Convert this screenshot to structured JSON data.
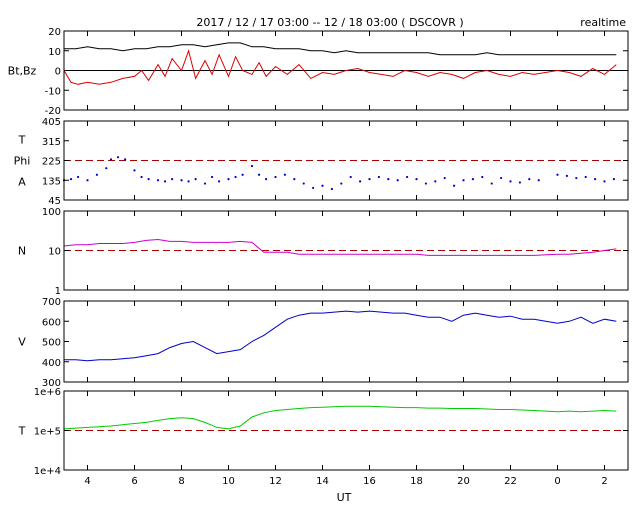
{
  "header": {
    "title": "2017 / 12 / 17   03:00 -- 12 / 18   03:00 ( DSCOVR )",
    "badge": "realtime"
  },
  "x_axis": {
    "label": "UT",
    "ticks": [
      {
        "h": 4,
        "label": "4"
      },
      {
        "h": 6,
        "label": "6"
      },
      {
        "h": 8,
        "label": "8"
      },
      {
        "h": 10,
        "label": "10"
      },
      {
        "h": 12,
        "label": "12"
      },
      {
        "h": 14,
        "label": "14"
      },
      {
        "h": 16,
        "label": "16"
      },
      {
        "h": 18,
        "label": "18"
      },
      {
        "h": 20,
        "label": "20"
      },
      {
        "h": 22,
        "label": "22"
      },
      {
        "h": 24,
        "label": "0"
      },
      {
        "h": 26,
        "label": "2"
      }
    ]
  },
  "chart_data": [
    {
      "type": "line",
      "id": "bt-bz",
      "ylabel": "Bt,Bz",
      "ylim": [
        -20,
        20
      ],
      "yticks": [
        {
          "v": 20,
          "label": "20"
        },
        {
          "v": 10,
          "label": "10"
        },
        {
          "v": 0,
          "label": "0"
        },
        {
          "v": -10,
          "label": "-10"
        },
        {
          "v": -20,
          "label": "-20"
        }
      ],
      "reference_lines": [
        {
          "value": 0,
          "style": "solid",
          "color": "#000000"
        }
      ],
      "series": [
        {
          "color": "#000000",
          "x": [
            3.0,
            3.5,
            4.0,
            4.5,
            5.0,
            5.5,
            6.0,
            6.5,
            7.0,
            7.5,
            8.0,
            8.5,
            9.0,
            9.5,
            10.0,
            10.5,
            11.0,
            11.5,
            12.0,
            12.5,
            13.0,
            13.5,
            14.0,
            14.5,
            15.0,
            15.5,
            16.0,
            16.5,
            17.0,
            17.5,
            18.0,
            18.5,
            19.0,
            19.5,
            20.0,
            20.5,
            21.0,
            21.5,
            22.0,
            22.5,
            23.0,
            24.0,
            24.5,
            25.0,
            25.5,
            26.0,
            26.5
          ],
          "y": [
            11,
            11,
            12,
            11,
            11,
            10,
            11,
            11,
            12,
            12,
            13,
            13,
            12,
            13,
            14,
            14,
            12,
            12,
            11,
            11,
            11,
            10,
            10,
            9,
            10,
            9,
            9,
            9,
            9,
            9,
            9,
            9,
            8,
            8,
            8,
            8,
            9,
            8,
            8,
            8,
            8,
            8,
            8,
            8,
            8,
            8,
            8
          ]
        },
        {
          "color": "#dd0000",
          "x": [
            3.0,
            3.3,
            3.6,
            4.0,
            4.5,
            5.0,
            5.5,
            6.0,
            6.3,
            6.6,
            7.0,
            7.3,
            7.6,
            8.0,
            8.3,
            8.6,
            9.0,
            9.3,
            9.6,
            10.0,
            10.3,
            10.6,
            11.0,
            11.3,
            11.6,
            12.0,
            12.5,
            13.0,
            13.5,
            14.0,
            14.5,
            15.0,
            15.5,
            16.0,
            16.5,
            17.0,
            17.5,
            18.0,
            18.5,
            19.0,
            19.5,
            20.0,
            20.5,
            21.0,
            21.5,
            22.0,
            22.5,
            23.0,
            24.0,
            24.5,
            25.0,
            25.5,
            26.0,
            26.5
          ],
          "y": [
            0,
            -6,
            -7,
            -6,
            -7,
            -6,
            -4,
            -3,
            0,
            -5,
            3,
            -3,
            6,
            0,
            10,
            -4,
            5,
            -2,
            8,
            -3,
            7,
            0,
            -2,
            4,
            -3,
            2,
            -2,
            3,
            -4,
            -1,
            -2,
            0,
            1,
            -1,
            -2,
            -3,
            0,
            -1,
            -3,
            -1,
            -2,
            -4,
            -1,
            0,
            -2,
            -3,
            -1,
            -2,
            0,
            -1,
            -3,
            1,
            -2,
            3
          ]
        }
      ]
    },
    {
      "type": "scatter",
      "id": "phi",
      "ylabel": [
        "T",
        "Phi",
        "A"
      ],
      "ylim": [
        45,
        405
      ],
      "yticks": [
        {
          "v": 405,
          "label": "405"
        },
        {
          "v": 315,
          "label": "315"
        },
        {
          "v": 225,
          "label": "225"
        },
        {
          "v": 135,
          "label": "135"
        },
        {
          "v": 45,
          "label": "45"
        }
      ],
      "reference_lines": [
        {
          "value": 225,
          "style": "dashed",
          "color": "#aa0000"
        }
      ],
      "series": [
        {
          "color": "#0000cc",
          "x": [
            3.0,
            3.3,
            3.6,
            4.0,
            4.4,
            4.8,
            5.0,
            5.3,
            5.6,
            6.0,
            6.3,
            6.6,
            7.0,
            7.3,
            7.6,
            8.0,
            8.3,
            8.6,
            9.0,
            9.3,
            9.6,
            10.0,
            10.3,
            10.6,
            11.0,
            11.3,
            11.6,
            12.0,
            12.4,
            12.8,
            13.2,
            13.6,
            14.0,
            14.4,
            14.8,
            15.2,
            15.6,
            16.0,
            16.4,
            16.8,
            17.2,
            17.6,
            18.0,
            18.4,
            18.8,
            19.2,
            19.6,
            20.0,
            20.4,
            20.8,
            21.2,
            21.6,
            22.0,
            22.4,
            22.8,
            23.2,
            24.0,
            24.4,
            24.8,
            25.2,
            25.6,
            26.0,
            26.4
          ],
          "y": [
            135,
            140,
            150,
            135,
            160,
            190,
            230,
            240,
            230,
            180,
            150,
            140,
            135,
            130,
            140,
            135,
            130,
            140,
            120,
            150,
            130,
            140,
            150,
            160,
            200,
            160,
            140,
            150,
            160,
            140,
            120,
            100,
            110,
            95,
            120,
            150,
            130,
            140,
            150,
            140,
            135,
            150,
            140,
            120,
            130,
            145,
            110,
            135,
            140,
            150,
            120,
            145,
            130,
            125,
            140,
            135,
            160,
            155,
            145,
            150,
            140,
            130,
            140
          ]
        }
      ]
    },
    {
      "type": "line",
      "id": "density",
      "ylabel": "N",
      "scale": "log",
      "ylim": [
        1,
        100
      ],
      "yticks": [
        {
          "v": 100,
          "label": "100"
        },
        {
          "v": 10,
          "label": "10"
        },
        {
          "v": 1,
          "label": "1"
        }
      ],
      "reference_lines": [
        {
          "value": 10,
          "style": "dashed",
          "color": "#aa0000"
        }
      ],
      "series": [
        {
          "color": "#cc00cc",
          "x": [
            3.0,
            3.5,
            4.0,
            4.5,
            5.0,
            5.5,
            6.0,
            6.5,
            7.0,
            7.5,
            8.0,
            8.5,
            9.0,
            9.5,
            10.0,
            10.5,
            11.0,
            11.5,
            12.0,
            12.5,
            13.0,
            13.5,
            14.0,
            14.5,
            15.0,
            15.5,
            16.0,
            16.5,
            17.0,
            17.5,
            18.0,
            18.5,
            19.0,
            19.5,
            20.0,
            20.5,
            21.0,
            21.5,
            22.0,
            22.5,
            23.0,
            24.0,
            24.5,
            25.0,
            25.5,
            26.0,
            26.5
          ],
          "y": [
            13,
            14,
            14,
            15,
            15,
            15,
            16,
            18,
            19,
            17,
            17,
            16,
            16,
            16,
            16,
            17,
            16,
            9,
            9,
            9,
            8,
            8,
            8,
            8,
            8,
            8,
            8,
            8,
            8,
            8,
            8,
            7.5,
            7.5,
            7.5,
            7.5,
            7.5,
            7.5,
            7.5,
            7.5,
            7.5,
            7.5,
            8,
            8,
            8.5,
            9,
            10,
            11
          ]
        }
      ]
    },
    {
      "type": "line",
      "id": "velocity",
      "ylabel": "V",
      "ylim": [
        300,
        700
      ],
      "yticks": [
        {
          "v": 700,
          "label": "700"
        },
        {
          "v": 600,
          "label": "600"
        },
        {
          "v": 500,
          "label": "500"
        },
        {
          "v": 400,
          "label": "400"
        },
        {
          "v": 300,
          "label": "300"
        }
      ],
      "series": [
        {
          "color": "#0000cc",
          "x": [
            3.0,
            3.5,
            4.0,
            4.5,
            5.0,
            5.5,
            6.0,
            6.5,
            7.0,
            7.5,
            8.0,
            8.5,
            9.0,
            9.5,
            10.0,
            10.5,
            11.0,
            11.5,
            12.0,
            12.5,
            13.0,
            13.5,
            14.0,
            14.5,
            15.0,
            15.5,
            16.0,
            16.5,
            17.0,
            17.5,
            18.0,
            18.5,
            19.0,
            19.5,
            20.0,
            20.5,
            21.0,
            21.5,
            22.0,
            22.5,
            23.0,
            24.0,
            24.5,
            25.0,
            25.5,
            26.0,
            26.5
          ],
          "y": [
            410,
            410,
            405,
            410,
            410,
            415,
            420,
            430,
            440,
            470,
            490,
            500,
            470,
            440,
            450,
            460,
            500,
            530,
            570,
            610,
            630,
            640,
            640,
            645,
            650,
            645,
            650,
            645,
            640,
            640,
            630,
            620,
            620,
            600,
            630,
            640,
            630,
            620,
            625,
            610,
            610,
            590,
            600,
            620,
            590,
            610,
            600
          ]
        }
      ]
    },
    {
      "type": "line",
      "id": "temperature",
      "ylabel": "T",
      "scale": "log",
      "ylim": [
        10000,
        1000000
      ],
      "yticks": [
        {
          "v": 1000000,
          "label": "1e+6"
        },
        {
          "v": 100000,
          "label": "1e+5"
        },
        {
          "v": 10000,
          "label": "1e+4"
        }
      ],
      "reference_lines": [
        {
          "value": 100000,
          "style": "dashed",
          "color": "#aa0000"
        }
      ],
      "series": [
        {
          "color": "#00cc00",
          "x": [
            3.0,
            3.5,
            4.0,
            4.5,
            5.0,
            5.5,
            6.0,
            6.5,
            7.0,
            7.5,
            8.0,
            8.5,
            9.0,
            9.5,
            10.0,
            10.5,
            11.0,
            11.5,
            12.0,
            12.5,
            13.0,
            13.5,
            14.0,
            14.5,
            15.0,
            15.5,
            16.0,
            16.5,
            17.0,
            17.5,
            18.0,
            18.5,
            19.0,
            19.5,
            20.0,
            20.5,
            21.0,
            21.5,
            22.0,
            22.5,
            23.0,
            24.0,
            24.5,
            25.0,
            25.5,
            26.0,
            26.5
          ],
          "y": [
            110000,
            115000,
            120000,
            125000,
            130000,
            140000,
            150000,
            160000,
            180000,
            200000,
            210000,
            200000,
            160000,
            120000,
            110000,
            130000,
            220000,
            280000,
            320000,
            340000,
            360000,
            380000,
            390000,
            400000,
            410000,
            410000,
            410000,
            400000,
            390000,
            380000,
            380000,
            370000,
            370000,
            360000,
            360000,
            360000,
            350000,
            340000,
            340000,
            330000,
            320000,
            300000,
            310000,
            300000,
            310000,
            320000,
            310000
          ]
        }
      ]
    }
  ]
}
